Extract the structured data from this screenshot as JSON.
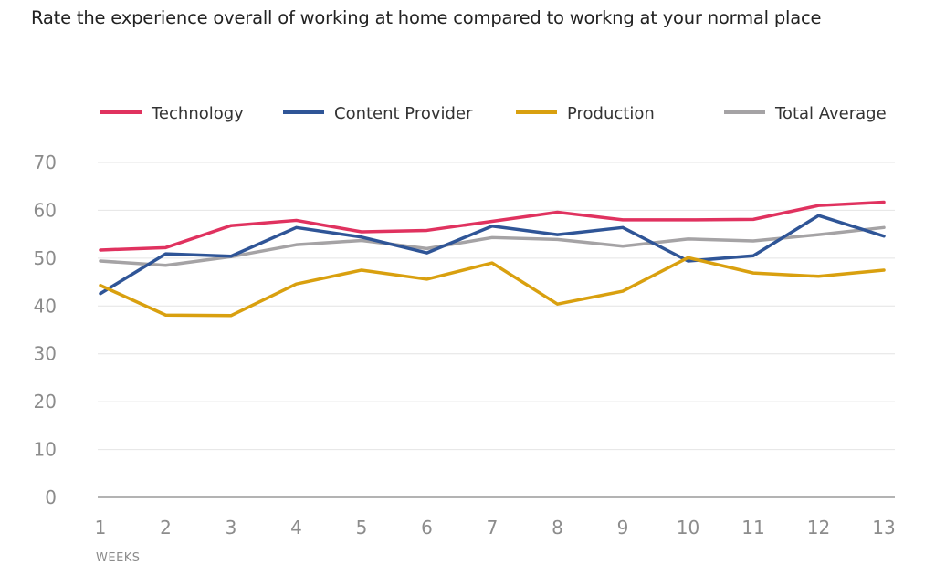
{
  "chart_data": {
    "type": "line",
    "title": "Rate the experience overall of working at home compared to workng at your normal place",
    "xlabel": "WEEKS",
    "ylabel": "",
    "x": [
      1,
      2,
      3,
      4,
      5,
      6,
      7,
      8,
      9,
      10,
      11,
      12,
      13
    ],
    "ylim": [
      0,
      70
    ],
    "yticks": [
      0,
      10,
      20,
      30,
      40,
      50,
      60,
      70
    ],
    "grid": true,
    "legend_position": "top",
    "series": [
      {
        "name": "Technology",
        "color": "#e0325f",
        "values": [
          51.7,
          52.2,
          56.8,
          57.9,
          55.5,
          55.8,
          57.7,
          59.6,
          58.0,
          58.0,
          58.1,
          61.0,
          61.7
        ]
      },
      {
        "name": "Content Provider",
        "color": "#2f5597",
        "values": [
          42.6,
          50.9,
          50.4,
          56.4,
          54.4,
          51.1,
          56.7,
          54.9,
          56.4,
          49.4,
          50.5,
          58.9,
          54.6
        ]
      },
      {
        "name": "Production",
        "color": "#d9a00f",
        "values": [
          44.3,
          38.1,
          38.0,
          44.6,
          47.5,
          45.6,
          49.0,
          40.4,
          43.1,
          50.1,
          46.9,
          46.2,
          47.5
        ]
      },
      {
        "name": "Total Average",
        "color": "#a5a3a5",
        "values": [
          49.4,
          48.5,
          50.3,
          52.8,
          53.7,
          52.0,
          54.3,
          53.9,
          52.5,
          54.0,
          53.6,
          54.9,
          56.4
        ]
      }
    ]
  }
}
